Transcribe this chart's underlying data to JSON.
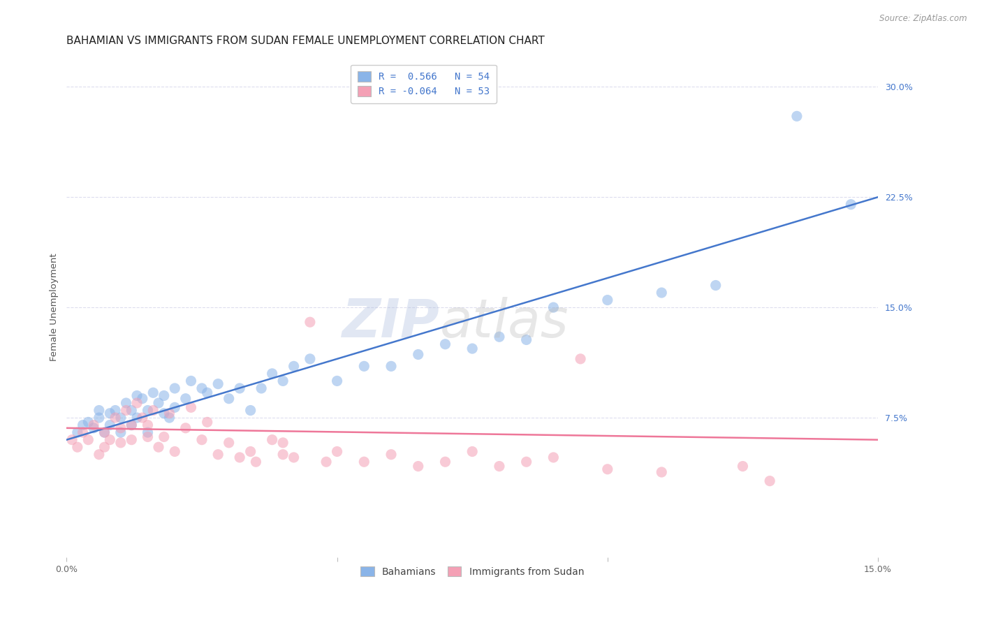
{
  "title": "BAHAMIAN VS IMMIGRANTS FROM SUDAN FEMALE UNEMPLOYMENT CORRELATION CHART",
  "source": "Source: ZipAtlas.com",
  "ylabel": "Female Unemployment",
  "xlim": [
    0.0,
    0.15
  ],
  "ylim": [
    -0.02,
    0.32
  ],
  "xticks": [
    0.0,
    0.05,
    0.1,
    0.15
  ],
  "xtick_labels": [
    "0.0%",
    "",
    "",
    "15.0%"
  ],
  "ytick_right_vals": [
    0.075,
    0.15,
    0.225,
    0.3
  ],
  "ytick_right_labels": [
    "7.5%",
    "15.0%",
    "22.5%",
    "30.0%"
  ],
  "legend_blue_R": "0.566",
  "legend_blue_N": "54",
  "legend_pink_R": "-0.064",
  "legend_pink_N": "53",
  "legend_label_blue": "Bahamians",
  "legend_label_pink": "Immigrants from Sudan",
  "blue_color": "#8AB4E8",
  "pink_color": "#F4A0B5",
  "blue_line_color": "#4477CC",
  "pink_line_color": "#EE7799",
  "blue_scatter_x": [
    0.002,
    0.003,
    0.004,
    0.005,
    0.006,
    0.006,
    0.007,
    0.008,
    0.008,
    0.009,
    0.01,
    0.01,
    0.011,
    0.012,
    0.012,
    0.013,
    0.013,
    0.014,
    0.015,
    0.015,
    0.016,
    0.017,
    0.018,
    0.018,
    0.019,
    0.02,
    0.02,
    0.022,
    0.023,
    0.025,
    0.026,
    0.028,
    0.03,
    0.032,
    0.034,
    0.036,
    0.038,
    0.04,
    0.042,
    0.045,
    0.05,
    0.055,
    0.06,
    0.065,
    0.07,
    0.075,
    0.08,
    0.085,
    0.09,
    0.1,
    0.11,
    0.12,
    0.135,
    0.145
  ],
  "blue_scatter_y": [
    0.065,
    0.07,
    0.072,
    0.068,
    0.08,
    0.075,
    0.065,
    0.078,
    0.07,
    0.08,
    0.065,
    0.075,
    0.085,
    0.07,
    0.08,
    0.09,
    0.075,
    0.088,
    0.065,
    0.08,
    0.092,
    0.085,
    0.078,
    0.09,
    0.075,
    0.082,
    0.095,
    0.088,
    0.1,
    0.095,
    0.092,
    0.098,
    0.088,
    0.095,
    0.08,
    0.095,
    0.105,
    0.1,
    0.11,
    0.115,
    0.1,
    0.11,
    0.11,
    0.118,
    0.125,
    0.122,
    0.13,
    0.128,
    0.15,
    0.155,
    0.16,
    0.165,
    0.28,
    0.22
  ],
  "pink_scatter_x": [
    0.001,
    0.002,
    0.003,
    0.004,
    0.005,
    0.006,
    0.007,
    0.007,
    0.008,
    0.009,
    0.01,
    0.01,
    0.011,
    0.012,
    0.012,
    0.013,
    0.014,
    0.015,
    0.015,
    0.016,
    0.017,
    0.018,
    0.019,
    0.02,
    0.022,
    0.023,
    0.025,
    0.026,
    0.028,
    0.03,
    0.032,
    0.034,
    0.035,
    0.038,
    0.04,
    0.04,
    0.042,
    0.045,
    0.048,
    0.05,
    0.055,
    0.06,
    0.065,
    0.07,
    0.075,
    0.08,
    0.085,
    0.09,
    0.095,
    0.1,
    0.11,
    0.125,
    0.13
  ],
  "pink_scatter_y": [
    0.06,
    0.055,
    0.065,
    0.06,
    0.07,
    0.05,
    0.065,
    0.055,
    0.06,
    0.075,
    0.068,
    0.058,
    0.08,
    0.07,
    0.06,
    0.085,
    0.075,
    0.062,
    0.07,
    0.08,
    0.055,
    0.062,
    0.078,
    0.052,
    0.068,
    0.082,
    0.06,
    0.072,
    0.05,
    0.058,
    0.048,
    0.052,
    0.045,
    0.06,
    0.05,
    0.058,
    0.048,
    0.14,
    0.045,
    0.052,
    0.045,
    0.05,
    0.042,
    0.045,
    0.052,
    0.042,
    0.045,
    0.048,
    0.115,
    0.04,
    0.038,
    0.042,
    0.032
  ],
  "blue_line_x": [
    0.0,
    0.15
  ],
  "blue_line_y": [
    0.06,
    0.225
  ],
  "pink_line_x": [
    0.0,
    0.15
  ],
  "pink_line_y": [
    0.068,
    0.06
  ],
  "background_color": "#FFFFFF",
  "grid_color": "#DDDDEE",
  "title_fontsize": 11,
  "axis_label_fontsize": 9.5,
  "tick_fontsize": 9,
  "scatter_size": 120,
  "scatter_alpha": 0.55
}
